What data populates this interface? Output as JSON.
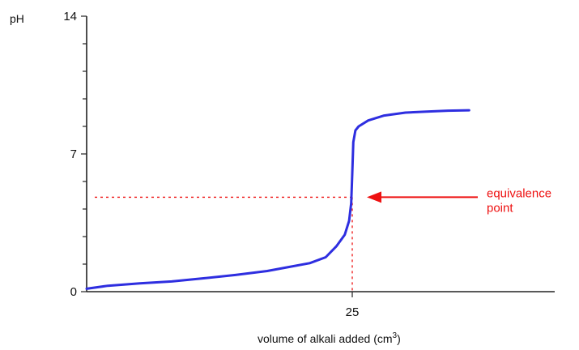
{
  "chart_data": {
    "type": "line",
    "title": "",
    "ylabel": "pH",
    "xlabel": "volume of alkali added (cm",
    "xlabel_sup": "3",
    "xlabel_close": ")",
    "xlim": [
      0,
      37
    ],
    "ylim": [
      0,
      14
    ],
    "grid": false,
    "legend": "none",
    "y_ticks": [
      {
        "value": 0,
        "label": "0"
      },
      {
        "value": 7,
        "label": "7"
      },
      {
        "value": 14,
        "label": "14"
      }
    ],
    "y_minor_ticks": [
      1.4,
      2.8,
      4.2,
      5.6,
      8.4,
      9.8,
      11.2,
      12.6
    ],
    "x_ticks": [
      {
        "value": 25,
        "label": "25"
      }
    ],
    "series": [
      {
        "color": "#2e2ee0",
        "x": [
          0,
          2,
          5,
          8,
          11,
          14,
          17,
          19,
          21,
          22.5,
          23.5,
          24.3,
          24.7,
          24.9,
          25.0,
          25.1,
          25.3,
          25.6,
          26.5,
          28,
          30,
          32,
          34,
          36
        ],
        "y": [
          0.15,
          0.3,
          0.42,
          0.52,
          0.68,
          0.85,
          1.05,
          1.25,
          1.45,
          1.75,
          2.3,
          2.9,
          3.6,
          4.5,
          6.0,
          7.6,
          8.2,
          8.4,
          8.7,
          8.95,
          9.1,
          9.15,
          9.2,
          9.22
        ]
      }
    ],
    "equivalence": {
      "x": 25,
      "y": 4.8,
      "color": "#ee1111"
    },
    "annotations": [
      {
        "line1": "equivalence",
        "line2": "point",
        "color": "#ee1111"
      }
    ]
  }
}
